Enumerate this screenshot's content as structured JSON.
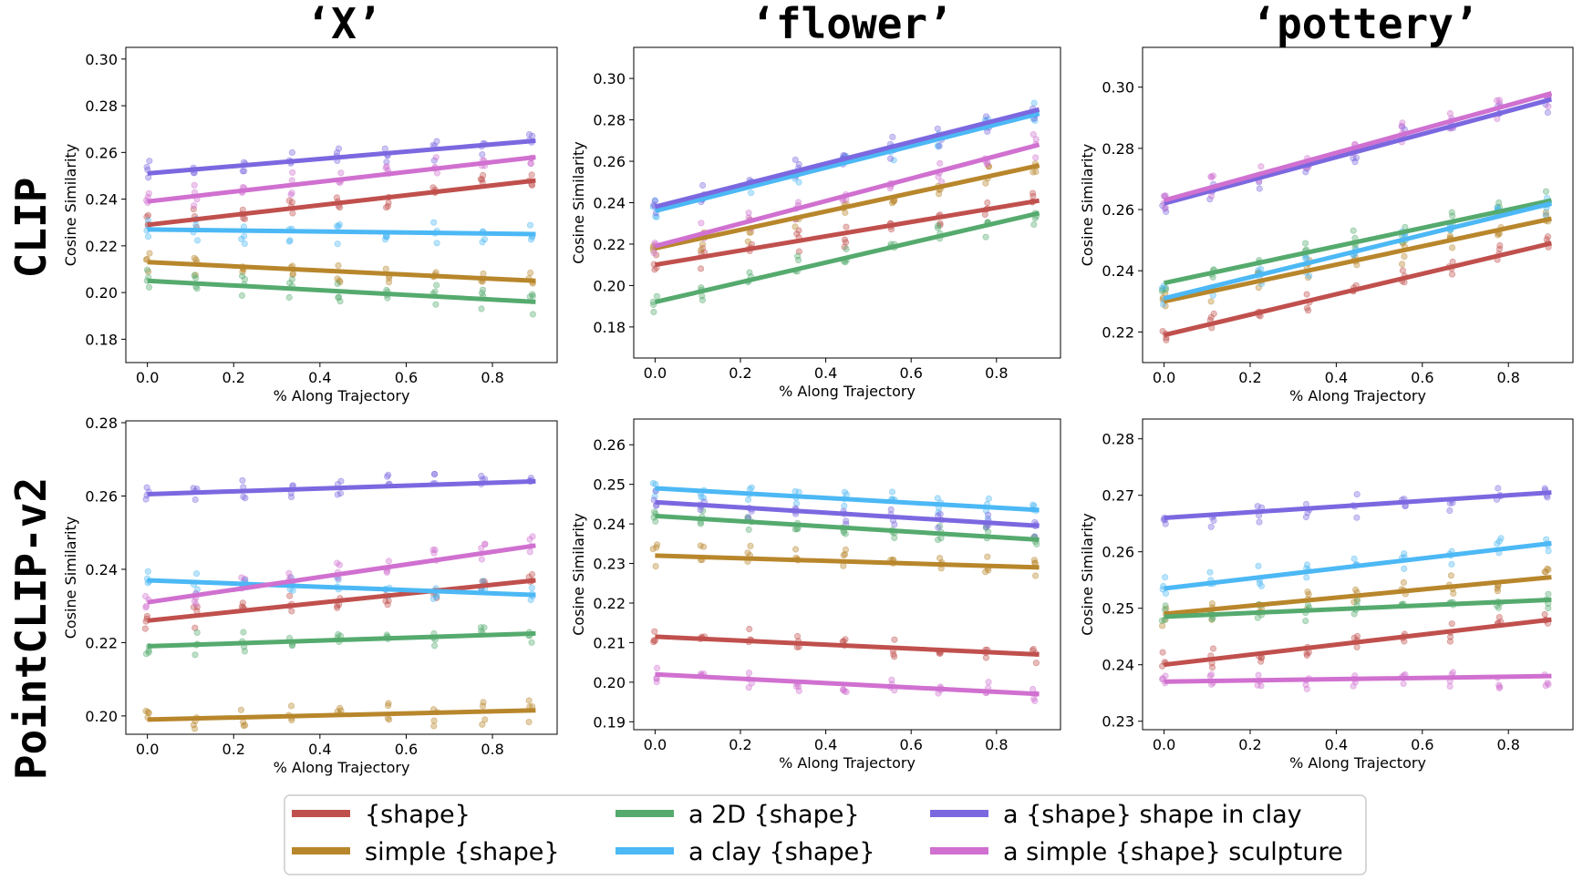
{
  "column_titles": [
    "‘X’",
    "‘flower’",
    "‘pottery’"
  ],
  "row_titles": [
    "CLIP",
    "PointCLIP-v2"
  ],
  "legend": [
    {
      "key": "shape",
      "label": "{shape}",
      "color": "#c0504d"
    },
    {
      "key": "simple",
      "label": "simple {shape}",
      "color": "#b8862b"
    },
    {
      "key": "twod",
      "label": "a 2D {shape}",
      "color": "#55aa6e"
    },
    {
      "key": "clay",
      "label": "a clay {shape}",
      "color": "#4cb8f5"
    },
    {
      "key": "clayshape",
      "label": "a {shape} shape in clay",
      "color": "#7b68e0"
    },
    {
      "key": "sculpture",
      "label": "a simple {shape} sculpture",
      "color": "#d070d0"
    }
  ],
  "chart_data": [
    {
      "type": "scatter",
      "title": "‘X’",
      "row": "CLIP",
      "xlabel": "% Along Trajectory",
      "ylabel": "Cosine Similarity",
      "xlim": [
        -0.05,
        0.95
      ],
      "ylim": [
        0.17,
        0.305
      ],
      "xticks": [
        "0.0",
        "0.2",
        "0.4",
        "0.6",
        "0.8"
      ],
      "xtick_values": [
        0,
        0.2,
        0.4,
        0.6,
        0.8
      ],
      "yticks": [
        "0.18",
        "0.20",
        "0.22",
        "0.24",
        "0.26",
        "0.28",
        "0.30"
      ],
      "ytick_values": [
        0.18,
        0.2,
        0.22,
        0.24,
        0.26,
        0.28,
        0.3
      ],
      "trend_lines": [
        {
          "key": "shape",
          "x": [
            0,
            0.9
          ],
          "y": [
            0.229,
            0.248
          ]
        },
        {
          "key": "simple",
          "x": [
            0,
            0.9
          ],
          "y": [
            0.213,
            0.205
          ]
        },
        {
          "key": "twod",
          "x": [
            0,
            0.9
          ],
          "y": [
            0.205,
            0.196
          ]
        },
        {
          "key": "clay",
          "x": [
            0,
            0.9
          ],
          "y": [
            0.227,
            0.225
          ]
        },
        {
          "key": "clayshape",
          "x": [
            0,
            0.9
          ],
          "y": [
            0.251,
            0.265
          ]
        },
        {
          "key": "sculpture",
          "x": [
            0,
            0.9
          ],
          "y": [
            0.239,
            0.258
          ]
        }
      ]
    },
    {
      "type": "scatter",
      "title": "‘flower’",
      "row": "CLIP",
      "xlabel": "% Along Trajectory",
      "ylabel": "Cosine Similarity",
      "xlim": [
        -0.05,
        0.95
      ],
      "ylim": [
        0.165,
        0.315
      ],
      "xticks": [
        "0.0",
        "0.2",
        "0.4",
        "0.6",
        "0.8"
      ],
      "xtick_values": [
        0,
        0.2,
        0.4,
        0.6,
        0.8
      ],
      "yticks": [
        "0.18",
        "0.20",
        "0.22",
        "0.24",
        "0.26",
        "0.28",
        "0.30"
      ],
      "ytick_values": [
        0.18,
        0.2,
        0.22,
        0.24,
        0.26,
        0.28,
        0.3
      ],
      "trend_lines": [
        {
          "key": "shape",
          "x": [
            0,
            0.9
          ],
          "y": [
            0.21,
            0.241
          ]
        },
        {
          "key": "simple",
          "x": [
            0,
            0.9
          ],
          "y": [
            0.218,
            0.258
          ]
        },
        {
          "key": "twod",
          "x": [
            0,
            0.9
          ],
          "y": [
            0.192,
            0.235
          ]
        },
        {
          "key": "clay",
          "x": [
            0,
            0.9
          ],
          "y": [
            0.236,
            0.283
          ]
        },
        {
          "key": "clayshape",
          "x": [
            0,
            0.9
          ],
          "y": [
            0.238,
            0.285
          ]
        },
        {
          "key": "sculpture",
          "x": [
            0,
            0.9
          ],
          "y": [
            0.219,
            0.268
          ]
        }
      ]
    },
    {
      "type": "scatter",
      "title": "‘pottery’",
      "row": "CLIP",
      "xlabel": "% Along Trajectory",
      "ylabel": "Cosine Similarity",
      "xlim": [
        -0.05,
        0.95
      ],
      "ylim": [
        0.21,
        0.313
      ],
      "xticks": [
        "0.0",
        "0.2",
        "0.4",
        "0.6",
        "0.8"
      ],
      "xtick_values": [
        0,
        0.2,
        0.4,
        0.6,
        0.8
      ],
      "yticks": [
        "0.22",
        "0.24",
        "0.26",
        "0.28",
        "0.30"
      ],
      "ytick_values": [
        0.22,
        0.24,
        0.26,
        0.28,
        0.3
      ],
      "trend_lines": [
        {
          "key": "shape",
          "x": [
            0,
            0.9
          ],
          "y": [
            0.219,
            0.249
          ]
        },
        {
          "key": "simple",
          "x": [
            0,
            0.9
          ],
          "y": [
            0.23,
            0.257
          ]
        },
        {
          "key": "twod",
          "x": [
            0,
            0.9
          ],
          "y": [
            0.236,
            0.263
          ]
        },
        {
          "key": "clay",
          "x": [
            0,
            0.9
          ],
          "y": [
            0.231,
            0.262
          ]
        },
        {
          "key": "clayshape",
          "x": [
            0,
            0.9
          ],
          "y": [
            0.262,
            0.296
          ]
        },
        {
          "key": "sculpture",
          "x": [
            0,
            0.9
          ],
          "y": [
            0.263,
            0.298
          ]
        }
      ]
    },
    {
      "type": "scatter",
      "title": "‘X’",
      "row": "PointCLIP-v2",
      "xlabel": "% Along Trajectory",
      "ylabel": "Cosine Similarity",
      "xlim": [
        -0.05,
        0.95
      ],
      "ylim": [
        0.195,
        0.2805
      ],
      "xticks": [
        "0.0",
        "0.2",
        "0.4",
        "0.6",
        "0.8"
      ],
      "xtick_values": [
        0,
        0.2,
        0.4,
        0.6,
        0.8
      ],
      "yticks": [
        "0.20",
        "0.22",
        "0.24",
        "0.26",
        "0.28"
      ],
      "ytick_values": [
        0.2,
        0.22,
        0.24,
        0.26,
        0.28
      ],
      "trend_lines": [
        {
          "key": "shape",
          "x": [
            0,
            0.9
          ],
          "y": [
            0.226,
            0.237
          ]
        },
        {
          "key": "simple",
          "x": [
            0,
            0.9
          ],
          "y": [
            0.199,
            0.2015
          ]
        },
        {
          "key": "twod",
          "x": [
            0,
            0.9
          ],
          "y": [
            0.219,
            0.2225
          ]
        },
        {
          "key": "clay",
          "x": [
            0,
            0.9
          ],
          "y": [
            0.237,
            0.233
          ]
        },
        {
          "key": "clayshape",
          "x": [
            0,
            0.9
          ],
          "y": [
            0.2605,
            0.264
          ]
        },
        {
          "key": "sculpture",
          "x": [
            0,
            0.9
          ],
          "y": [
            0.231,
            0.2465
          ]
        }
      ]
    },
    {
      "type": "scatter",
      "title": "‘flower’",
      "row": "PointCLIP-v2",
      "xlabel": "% Along Trajectory",
      "ylabel": "Cosine Similarity",
      "xlim": [
        -0.05,
        0.95
      ],
      "ylim": [
        0.188,
        0.2665
      ],
      "xticks": [
        "0.0",
        "0.2",
        "0.4",
        "0.6",
        "0.8"
      ],
      "xtick_values": [
        0,
        0.2,
        0.4,
        0.6,
        0.8
      ],
      "yticks": [
        "0.19",
        "0.20",
        "0.21",
        "0.22",
        "0.23",
        "0.24",
        "0.25",
        "0.26"
      ],
      "ytick_values": [
        0.19,
        0.2,
        0.21,
        0.22,
        0.23,
        0.24,
        0.25,
        0.26
      ],
      "trend_lines": [
        {
          "key": "shape",
          "x": [
            0,
            0.9
          ],
          "y": [
            0.2115,
            0.207
          ]
        },
        {
          "key": "simple",
          "x": [
            0,
            0.9
          ],
          "y": [
            0.232,
            0.229
          ]
        },
        {
          "key": "twod",
          "x": [
            0,
            0.9
          ],
          "y": [
            0.242,
            0.236
          ]
        },
        {
          "key": "clay",
          "x": [
            0,
            0.9
          ],
          "y": [
            0.249,
            0.2435
          ]
        },
        {
          "key": "clayshape",
          "x": [
            0,
            0.9
          ],
          "y": [
            0.2455,
            0.2395
          ]
        },
        {
          "key": "sculpture",
          "x": [
            0,
            0.9
          ],
          "y": [
            0.202,
            0.197
          ]
        }
      ]
    },
    {
      "type": "scatter",
      "title": "‘pottery’",
      "row": "PointCLIP-v2",
      "xlabel": "% Along Trajectory",
      "ylabel": "Cosine Similarity",
      "xlim": [
        -0.05,
        0.95
      ],
      "ylim": [
        0.2285,
        0.2835
      ],
      "xticks": [
        "0.0",
        "0.2",
        "0.4",
        "0.6",
        "0.8"
      ],
      "xtick_values": [
        0,
        0.2,
        0.4,
        0.6,
        0.8
      ],
      "yticks": [
        "0.23",
        "0.24",
        "0.25",
        "0.26",
        "0.27",
        "0.28"
      ],
      "ytick_values": [
        0.23,
        0.24,
        0.25,
        0.26,
        0.27,
        0.28
      ],
      "trend_lines": [
        {
          "key": "shape",
          "x": [
            0,
            0.9
          ],
          "y": [
            0.24,
            0.248
          ]
        },
        {
          "key": "simple",
          "x": [
            0,
            0.9
          ],
          "y": [
            0.249,
            0.2555
          ]
        },
        {
          "key": "twod",
          "x": [
            0,
            0.9
          ],
          "y": [
            0.2485,
            0.2515
          ]
        },
        {
          "key": "clay",
          "x": [
            0,
            0.9
          ],
          "y": [
            0.2535,
            0.2615
          ]
        },
        {
          "key": "clayshape",
          "x": [
            0,
            0.9
          ],
          "y": [
            0.266,
            0.2705
          ]
        },
        {
          "key": "sculpture",
          "x": [
            0,
            0.9
          ],
          "y": [
            0.237,
            0.238
          ]
        }
      ]
    }
  ]
}
